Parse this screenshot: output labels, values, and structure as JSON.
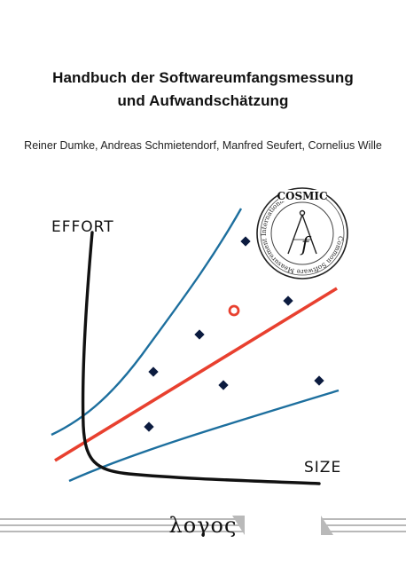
{
  "book": {
    "title_line1": "Handbuch der Softwareumfangsmessung",
    "title_line2": "und Aufwandschätzung",
    "authors": "Reiner Dumke, Andreas Schmietendorf, Manfred Seufert, Cornelius Wille"
  },
  "illustration": {
    "y_label": "EFFORT",
    "x_label": "SIZE",
    "colors": {
      "regression": "#e8402f",
      "bounds": "#1d6f9e",
      "points": "#0b1b3f",
      "outlier": "#e8402f",
      "axis": "#111111"
    }
  },
  "seal": {
    "top_text": "COSMIC",
    "ring_text": "Common Software Measurement International Consortium",
    "center_letter": "f"
  },
  "publisher": {
    "name": "λογος"
  }
}
